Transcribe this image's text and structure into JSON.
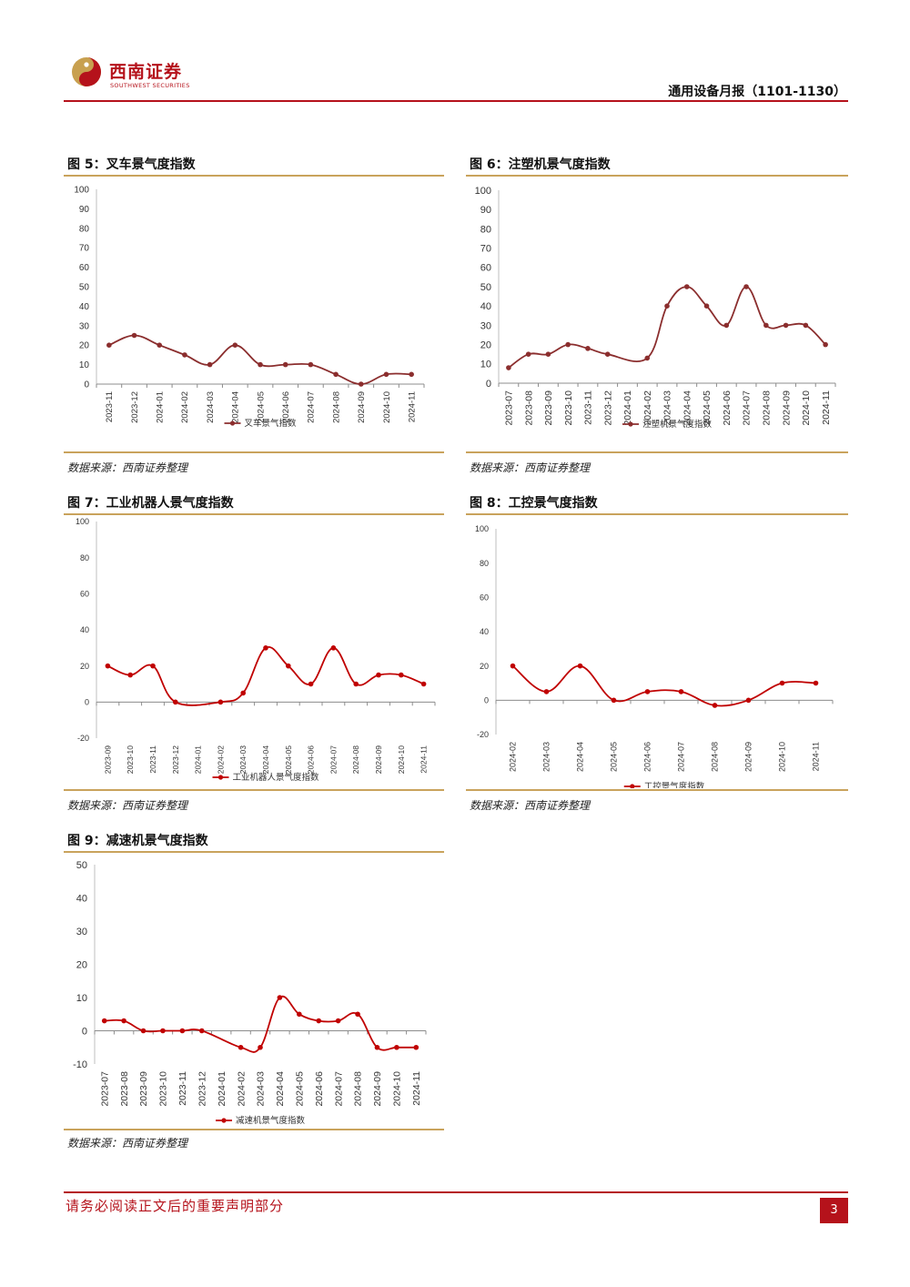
{
  "header": {
    "brand_cn": "西南证券",
    "brand_en": "SOUTHWEST SECURITIES",
    "report_title": "通用设备月报（1101-1130）",
    "colors": {
      "brand": "#b5121b",
      "accent_rule": "#c9a35c"
    }
  },
  "figures": [
    {
      "title": "图 5：叉车景气度指数",
      "source": "数据来源：西南证券整理"
    },
    {
      "title": "图 6：注塑机景气度指数",
      "source": "数据来源：西南证券整理"
    },
    {
      "title": "图 7：工业机器人景气度指数",
      "source": "数据来源：西南证券整理"
    },
    {
      "title": "图 8：工控景气度指数",
      "source": "数据来源：西南证券整理"
    },
    {
      "title": "图 9：减速机景气度指数",
      "source": "数据来源：西南证券整理"
    }
  ],
  "chart_data": [
    {
      "type": "line",
      "title": "",
      "x": [
        "2023-11",
        "2023-12",
        "2024-01",
        "2024-02",
        "2024-03",
        "2024-04",
        "2024-05",
        "2024-06",
        "2024-07",
        "2024-08",
        "2024-09",
        "2024-10",
        "2024-11"
      ],
      "series": [
        {
          "name": "叉车景气指数",
          "values": [
            20,
            25,
            20,
            15,
            10,
            20,
            10,
            10,
            10,
            5,
            0,
            5,
            5
          ]
        }
      ],
      "yticks": [
        0,
        10,
        20,
        30,
        40,
        50,
        60,
        70,
        80,
        90,
        100
      ],
      "ylim": [
        0,
        100
      ],
      "legend": "bottom",
      "grid": false,
      "color": "#8b2e2e"
    },
    {
      "type": "line",
      "title": "",
      "x": [
        "2023-07",
        "2023-08",
        "2023-09",
        "2023-10",
        "2023-11",
        "2023-12",
        "2024-01",
        "2024-02",
        "2024-03",
        "2024-04",
        "2024-05",
        "2024-06",
        "2024-07",
        "2024-08",
        "2024-09",
        "2024-10",
        "2024-11"
      ],
      "series": [
        {
          "name": "注塑机景气度指数",
          "values": [
            8,
            15,
            15,
            20,
            18,
            15,
            null,
            13,
            40,
            50,
            40,
            30,
            50,
            30,
            30,
            30,
            20
          ]
        }
      ],
      "yticks": [
        0,
        10,
        20,
        30,
        40,
        50,
        60,
        70,
        80,
        90,
        100
      ],
      "ylim": [
        0,
        100
      ],
      "legend": "bottom",
      "grid": false,
      "color": "#8b2e2e"
    },
    {
      "type": "line",
      "title": "",
      "x": [
        "2023-09",
        "2023-10",
        "2023-11",
        "2023-12",
        "2024-01",
        "2024-02",
        "2024-03",
        "2024-04",
        "2024-05",
        "2024-06",
        "2024-07",
        "2024-08",
        "2024-09",
        "2024-10",
        "2024-11"
      ],
      "series": [
        {
          "name": "工业机器人景气度指数",
          "values": [
            20,
            15,
            20,
            0,
            null,
            0,
            5,
            30,
            20,
            10,
            30,
            10,
            15,
            15,
            10
          ]
        }
      ],
      "yticks": [
        -20,
        0,
        20,
        40,
        60,
        80,
        100
      ],
      "ylim": [
        -20,
        100
      ],
      "legend": "bottom",
      "grid": false,
      "color": "#c00000"
    },
    {
      "type": "line",
      "title": "",
      "x": [
        "2024-02",
        "2024-03",
        "2024-04",
        "2024-05",
        "2024-06",
        "2024-07",
        "2024-08",
        "2024-09",
        "2024-10",
        "2024-11"
      ],
      "series": [
        {
          "name": "工控景气度指数",
          "values": [
            20,
            5,
            20,
            0,
            5,
            5,
            -3,
            0,
            10,
            10
          ]
        }
      ],
      "yticks": [
        -20,
        0,
        20,
        40,
        60,
        80,
        100
      ],
      "ylim": [
        -20,
        100
      ],
      "legend": "bottom",
      "grid": false,
      "color": "#c00000"
    },
    {
      "type": "line",
      "title": "",
      "x": [
        "2023-07",
        "2023-08",
        "2023-09",
        "2023-10",
        "2023-11",
        "2023-12",
        "2024-01",
        "2024-02",
        "2024-03",
        "2024-04",
        "2024-05",
        "2024-06",
        "2024-07",
        "2024-08",
        "2024-09",
        "2024-10",
        "2024-11"
      ],
      "series": [
        {
          "name": "减速机景气度指数",
          "values": [
            3,
            3,
            0,
            0,
            0,
            0,
            null,
            -5,
            -5,
            10,
            5,
            3,
            3,
            5,
            -5,
            -5,
            -5
          ]
        }
      ],
      "yticks": [
        -10,
        0,
        10,
        20,
        30,
        40,
        50
      ],
      "ylim": [
        -10,
        50
      ],
      "legend": "bottom",
      "grid": false,
      "color": "#c00000"
    }
  ],
  "footer": {
    "disclaimer": "请务必阅读正文后的重要声明部分",
    "page_number": "3"
  }
}
